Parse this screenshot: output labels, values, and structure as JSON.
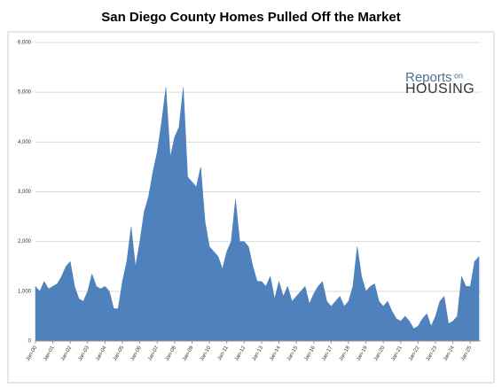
{
  "chart_data": {
    "type": "area",
    "title": "San Diego County Homes Pulled Off the Market",
    "logo": {
      "line1": "Reports",
      "line1b": "on",
      "line2": "HOUSING"
    },
    "color": "#4f81bd",
    "grid": true,
    "x": [
      2000,
      2000.25,
      2000.5,
      2000.75,
      2001,
      2001.25,
      2001.5,
      2001.75,
      2002,
      2002.25,
      2002.5,
      2002.75,
      2003,
      2003.25,
      2003.5,
      2003.75,
      2004,
      2004.25,
      2004.5,
      2004.75,
      2005,
      2005.25,
      2005.5,
      2005.75,
      2006,
      2006.25,
      2006.5,
      2006.75,
      2007,
      2007.25,
      2007.5,
      2007.75,
      2008,
      2008.25,
      2008.5,
      2008.75,
      2009,
      2009.25,
      2009.5,
      2009.75,
      2010,
      2010.25,
      2010.5,
      2010.75,
      2011,
      2011.25,
      2011.5,
      2011.75,
      2012,
      2012.25,
      2012.5,
      2012.75,
      2013,
      2013.25,
      2013.5,
      2013.75,
      2014,
      2014.25,
      2014.5,
      2014.75,
      2015,
      2015.25,
      2015.5,
      2015.75,
      2016,
      2016.25,
      2016.5,
      2016.75,
      2017,
      2017.25,
      2017.5,
      2017.75,
      2018,
      2018.25,
      2018.5,
      2018.75,
      2019,
      2019.25,
      2019.5,
      2019.75,
      2020,
      2020.25,
      2020.5,
      2020.75,
      2021,
      2021.25,
      2021.5,
      2021.75,
      2022,
      2022.25,
      2022.5,
      2022.75,
      2023,
      2023.25,
      2023.5,
      2023.75,
      2024,
      2024.25,
      2024.5,
      2024.75,
      2025,
      2025.25,
      2025.5
    ],
    "values": [
      1100,
      1000,
      1200,
      1050,
      1100,
      1150,
      1300,
      1500,
      1600,
      1100,
      850,
      800,
      1000,
      1350,
      1100,
      1050,
      1100,
      1000,
      650,
      650,
      1200,
      1600,
      2300,
      1500,
      2000,
      2600,
      2900,
      3400,
      3800,
      4400,
      5100,
      3700,
      4100,
      4300,
      5100,
      3300,
      3200,
      3100,
      3500,
      2400,
      1900,
      1800,
      1700,
      1450,
      1800,
      2000,
      2850,
      2000,
      2000,
      1900,
      1500,
      1200,
      1200,
      1100,
      1300,
      850,
      1200,
      900,
      1100,
      800,
      900,
      1000,
      1100,
      750,
      950,
      1100,
      1200,
      800,
      700,
      800,
      900,
      700,
      800,
      1100,
      1900,
      1300,
      1000,
      1100,
      1150,
      800,
      700,
      800,
      600,
      450,
      400,
      500,
      400,
      250,
      300,
      450,
      550,
      300,
      500,
      800,
      900,
      350,
      400,
      500,
      1300,
      1100,
      1100,
      1600,
      1700
    ],
    "xlim": [
      2000,
      2025.6
    ],
    "xticks": [
      {
        "value": 2000,
        "label": "Jan-00"
      },
      {
        "value": 2001,
        "label": "Jan-01"
      },
      {
        "value": 2002,
        "label": "Jan-02"
      },
      {
        "value": 2003,
        "label": "Jan-03"
      },
      {
        "value": 2004,
        "label": "Jan-04"
      },
      {
        "value": 2005,
        "label": "Jan-05"
      },
      {
        "value": 2006,
        "label": "Jan-06"
      },
      {
        "value": 2007,
        "label": "Jan-07"
      },
      {
        "value": 2008,
        "label": "Jan-08"
      },
      {
        "value": 2009,
        "label": "Jan-09"
      },
      {
        "value": 2010,
        "label": "Jan-10"
      },
      {
        "value": 2011,
        "label": "Jan-11"
      },
      {
        "value": 2012,
        "label": "Jan-12"
      },
      {
        "value": 2013,
        "label": "Jan-13"
      },
      {
        "value": 2014,
        "label": "Jan-14"
      },
      {
        "value": 2015,
        "label": "Jan-15"
      },
      {
        "value": 2016,
        "label": "Jan-16"
      },
      {
        "value": 2017,
        "label": "Jan-17"
      },
      {
        "value": 2018,
        "label": "Jan-18"
      },
      {
        "value": 2019,
        "label": "Jan-19"
      },
      {
        "value": 2020,
        "label": "Jan-20"
      },
      {
        "value": 2021,
        "label": "Jan-21"
      },
      {
        "value": 2022,
        "label": "Jan-22"
      },
      {
        "value": 2023,
        "label": "Jan-23"
      },
      {
        "value": 2024,
        "label": "Jan-24"
      },
      {
        "value": 2025,
        "label": "Jan-25"
      }
    ],
    "ylim": [
      0,
      6000
    ],
    "yticks": [
      0,
      {
        "value": 1000,
        "label": "1,000"
      },
      {
        "value": 2000,
        "label": "2,000"
      },
      {
        "value": 3000,
        "label": "3,000"
      },
      {
        "value": 4000,
        "label": "4,000"
      },
      {
        "value": 5000,
        "label": "5,000"
      },
      {
        "value": 6000,
        "label": "6,000"
      }
    ]
  }
}
